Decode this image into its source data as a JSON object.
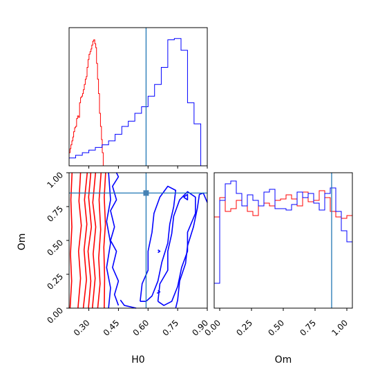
{
  "chart_data": {
    "type": "corner",
    "parameters": [
      "H0",
      "Om"
    ],
    "xlabels": {
      "h0": "H0",
      "om": "Om"
    },
    "ylabel": "Om",
    "h0_range": [
      0.2,
      0.9
    ],
    "om_range": [
      0.0,
      1.0
    ],
    "h0_ticks": [
      "0.30",
      "0.45",
      "0.60",
      "0.75",
      "0.90"
    ],
    "om_ticks": [
      "0.00",
      "0.25",
      "0.50",
      "0.75",
      "1.00"
    ],
    "truth": {
      "H0": 0.59,
      "Om": 0.85
    },
    "colors": {
      "red": "#ff0000",
      "blue": "#0000ff",
      "truth": "#1f77b4"
    },
    "h0_hist": {
      "bin_edges": [
        0.2,
        0.233,
        0.267,
        0.3,
        0.333,
        0.367,
        0.4,
        0.433,
        0.467,
        0.5,
        0.533,
        0.567,
        0.6,
        0.633,
        0.667,
        0.7,
        0.733,
        0.767,
        0.8,
        0.833,
        0.867,
        0.9
      ],
      "series": [
        {
          "color": "red",
          "bins": [
            [
              0.2,
              0.1
            ],
            [
              0.205,
              0.13
            ],
            [
              0.209,
              0.16
            ],
            [
              0.214,
              0.19
            ],
            [
              0.219,
              0.22
            ],
            [
              0.223,
              0.26
            ],
            [
              0.228,
              0.29
            ],
            [
              0.233,
              0.3
            ],
            [
              0.238,
              0.36
            ],
            [
              0.243,
              0.38
            ],
            [
              0.248,
              0.37
            ],
            [
              0.253,
              0.48
            ],
            [
              0.258,
              0.52
            ],
            [
              0.263,
              0.53
            ],
            [
              0.268,
              0.55
            ],
            [
              0.272,
              0.58
            ],
            [
              0.277,
              0.62
            ],
            [
              0.282,
              0.66
            ],
            [
              0.287,
              0.68
            ],
            [
              0.291,
              0.75
            ],
            [
              0.296,
              0.81
            ],
            [
              0.301,
              0.85
            ],
            [
              0.306,
              0.87
            ],
            [
              0.311,
              0.89
            ],
            [
              0.315,
              0.92
            ],
            [
              0.32,
              0.95
            ],
            [
              0.325,
              0.96
            ],
            [
              0.33,
              0.93
            ],
            [
              0.335,
              0.9
            ],
            [
              0.339,
              0.78
            ],
            [
              0.344,
              0.66
            ],
            [
              0.349,
              0.55
            ],
            [
              0.354,
              0.4
            ],
            [
              0.359,
              0.3
            ],
            [
              0.364,
              0.2
            ],
            [
              0.368,
              0.1
            ],
            [
              0.373,
              0.0
            ]
          ]
        },
        {
          "color": "blue",
          "bins": [
            [
              0.2,
              0.06
            ],
            [
              0.233,
              0.08
            ],
            [
              0.267,
              0.1
            ],
            [
              0.3,
              0.12
            ],
            [
              0.333,
              0.14
            ],
            [
              0.367,
              0.16
            ],
            [
              0.4,
              0.19
            ],
            [
              0.433,
              0.24
            ],
            [
              0.467,
              0.3
            ],
            [
              0.5,
              0.34
            ],
            [
              0.533,
              0.4
            ],
            [
              0.567,
              0.45
            ],
            [
              0.6,
              0.53
            ],
            [
              0.633,
              0.62
            ],
            [
              0.667,
              0.75
            ],
            [
              0.7,
              0.96
            ],
            [
              0.733,
              0.97
            ],
            [
              0.767,
              0.88
            ],
            [
              0.8,
              0.48
            ],
            [
              0.833,
              0.32
            ],
            [
              0.867,
              0.0
            ]
          ]
        }
      ]
    },
    "om_hist": {
      "series": [
        {
          "color": "red",
          "bins": [
            [
              0.0,
              0.66
            ],
            [
              0.04,
              0.8
            ],
            [
              0.08,
              0.7
            ],
            [
              0.12,
              0.72
            ],
            [
              0.16,
              0.78
            ],
            [
              0.2,
              0.74
            ],
            [
              0.24,
              0.7
            ],
            [
              0.28,
              0.67
            ],
            [
              0.32,
              0.74
            ],
            [
              0.36,
              0.76
            ],
            [
              0.4,
              0.74
            ],
            [
              0.44,
              0.78
            ],
            [
              0.48,
              0.79
            ],
            [
              0.52,
              0.82
            ],
            [
              0.56,
              0.79
            ],
            [
              0.6,
              0.74
            ],
            [
              0.64,
              0.84
            ],
            [
              0.68,
              0.77
            ],
            [
              0.72,
              0.78
            ],
            [
              0.76,
              0.85
            ],
            [
              0.8,
              0.8
            ],
            [
              0.84,
              0.7
            ],
            [
              0.88,
              0.66
            ],
            [
              0.92,
              0.65
            ],
            [
              0.96,
              0.67
            ]
          ]
        },
        {
          "color": "blue",
          "bins": [
            [
              0.0,
              0.18
            ],
            [
              0.04,
              0.78
            ],
            [
              0.08,
              0.9
            ],
            [
              0.12,
              0.92
            ],
            [
              0.16,
              0.83
            ],
            [
              0.2,
              0.74
            ],
            [
              0.24,
              0.82
            ],
            [
              0.28,
              0.78
            ],
            [
              0.32,
              0.74
            ],
            [
              0.36,
              0.84
            ],
            [
              0.4,
              0.86
            ],
            [
              0.44,
              0.72
            ],
            [
              0.48,
              0.72
            ],
            [
              0.52,
              0.71
            ],
            [
              0.56,
              0.75
            ],
            [
              0.6,
              0.84
            ],
            [
              0.64,
              0.8
            ],
            [
              0.68,
              0.83
            ],
            [
              0.72,
              0.76
            ],
            [
              0.76,
              0.71
            ],
            [
              0.8,
              0.83
            ],
            [
              0.84,
              0.87
            ],
            [
              0.88,
              0.7
            ],
            [
              0.92,
              0.56
            ],
            [
              0.96,
              0.48
            ]
          ]
        }
      ]
    },
    "contours_2d": [
      {
        "color": "red",
        "points": [
          [
            0.205,
            0.0
          ],
          [
            0.213,
            0.2
          ],
          [
            0.207,
            0.4
          ],
          [
            0.214,
            0.6
          ],
          [
            0.209,
            0.8
          ],
          [
            0.215,
            1.0
          ]
        ]
      },
      {
        "color": "red",
        "points": [
          [
            0.245,
            0.0
          ],
          [
            0.258,
            0.22
          ],
          [
            0.248,
            0.42
          ],
          [
            0.262,
            0.61
          ],
          [
            0.25,
            0.79
          ],
          [
            0.258,
            1.0
          ]
        ]
      },
      {
        "color": "red",
        "points": [
          [
            0.272,
            0.0
          ],
          [
            0.288,
            0.21
          ],
          [
            0.276,
            0.43
          ],
          [
            0.29,
            0.62
          ],
          [
            0.278,
            0.8
          ],
          [
            0.292,
            1.0
          ]
        ]
      },
      {
        "color": "red",
        "points": [
          [
            0.298,
            0.0
          ],
          [
            0.31,
            0.2
          ],
          [
            0.296,
            0.42
          ],
          [
            0.313,
            0.6
          ],
          [
            0.299,
            0.82
          ],
          [
            0.31,
            1.0
          ]
        ]
      },
      {
        "color": "red",
        "points": [
          [
            0.318,
            0.0
          ],
          [
            0.332,
            0.22
          ],
          [
            0.322,
            0.4
          ],
          [
            0.335,
            0.6
          ],
          [
            0.32,
            0.78
          ],
          [
            0.334,
            1.0
          ]
        ]
      },
      {
        "color": "red",
        "points": [
          [
            0.345,
            0.0
          ],
          [
            0.357,
            0.18
          ],
          [
            0.35,
            0.37
          ],
          [
            0.36,
            0.58
          ],
          [
            0.352,
            0.8
          ],
          [
            0.362,
            1.0
          ]
        ]
      },
      {
        "color": "red",
        "points": [
          [
            0.378,
            0.0
          ],
          [
            0.38,
            0.22
          ],
          [
            0.376,
            0.45
          ],
          [
            0.384,
            0.62
          ],
          [
            0.378,
            0.82
          ],
          [
            0.385,
            1.0
          ]
        ]
      },
      {
        "color": "blue",
        "points": [
          [
            0.45,
            0.02
          ],
          [
            0.43,
            0.1
          ],
          [
            0.45,
            0.2
          ],
          [
            0.42,
            0.3
          ],
          [
            0.44,
            0.42
          ],
          [
            0.41,
            0.5
          ],
          [
            0.43,
            0.6
          ],
          [
            0.41,
            0.72
          ],
          [
            0.44,
            0.8
          ],
          [
            0.42,
            0.9
          ],
          [
            0.45,
            0.97
          ],
          [
            0.44,
            1.0
          ]
        ]
      },
      {
        "color": "blue",
        "points": [
          [
            0.4,
            0.0
          ],
          [
            0.41,
            0.15
          ],
          [
            0.39,
            0.3
          ],
          [
            0.41,
            0.48
          ],
          [
            0.39,
            0.64
          ],
          [
            0.41,
            0.8
          ],
          [
            0.4,
            1.0
          ]
        ]
      },
      {
        "color": "blue",
        "points": [
          [
            0.54,
            0.0
          ],
          [
            0.48,
            0.02
          ],
          [
            0.46,
            0.06
          ]
        ]
      },
      {
        "color": "blue",
        "points": [
          [
            0.65,
            0.05
          ],
          [
            0.66,
            0.18
          ],
          [
            0.7,
            0.28
          ],
          [
            0.7,
            0.42
          ],
          [
            0.72,
            0.55
          ],
          [
            0.73,
            0.68
          ],
          [
            0.76,
            0.8
          ],
          [
            0.8,
            0.86
          ],
          [
            0.84,
            0.82
          ],
          [
            0.84,
            0.7
          ],
          [
            0.8,
            0.56
          ],
          [
            0.8,
            0.42
          ],
          [
            0.77,
            0.3
          ],
          [
            0.75,
            0.16
          ],
          [
            0.72,
            0.05
          ],
          [
            0.68,
            0.02
          ],
          [
            0.65,
            0.05
          ]
        ]
      },
      {
        "color": "blue",
        "points": [
          [
            0.74,
            0.0
          ],
          [
            0.75,
            0.06
          ],
          [
            0.76,
            0.2
          ],
          [
            0.79,
            0.33
          ],
          [
            0.8,
            0.46
          ],
          [
            0.83,
            0.6
          ],
          [
            0.85,
            0.74
          ],
          [
            0.86,
            0.84
          ],
          [
            0.88,
            0.85
          ],
          [
            0.9,
            0.78
          ]
        ]
      },
      {
        "color": "blue",
        "points": [
          [
            0.56,
            0.05
          ],
          [
            0.57,
            0.18
          ],
          [
            0.6,
            0.28
          ],
          [
            0.6,
            0.42
          ],
          [
            0.62,
            0.56
          ],
          [
            0.63,
            0.7
          ],
          [
            0.66,
            0.82
          ],
          [
            0.7,
            0.9
          ],
          [
            0.74,
            0.87
          ],
          [
            0.73,
            0.75
          ],
          [
            0.71,
            0.62
          ],
          [
            0.7,
            0.48
          ],
          [
            0.67,
            0.34
          ],
          [
            0.65,
            0.2
          ],
          [
            0.62,
            0.09
          ],
          [
            0.59,
            0.05
          ],
          [
            0.56,
            0.05
          ]
        ]
      },
      {
        "color": "blue",
        "points": [
          [
            0.78,
            0.82
          ],
          [
            0.8,
            0.8
          ],
          [
            0.8,
            0.84
          ],
          [
            0.78,
            0.82
          ]
        ]
      },
      {
        "color": "blue",
        "points": [
          [
            0.65,
            0.41
          ],
          [
            0.66,
            0.42
          ],
          [
            0.65,
            0.43
          ]
        ]
      },
      {
        "color": "blue",
        "points": [
          [
            0.645,
            0.11
          ],
          [
            0.66,
            0.12
          ],
          [
            0.65,
            0.13
          ]
        ]
      }
    ]
  }
}
